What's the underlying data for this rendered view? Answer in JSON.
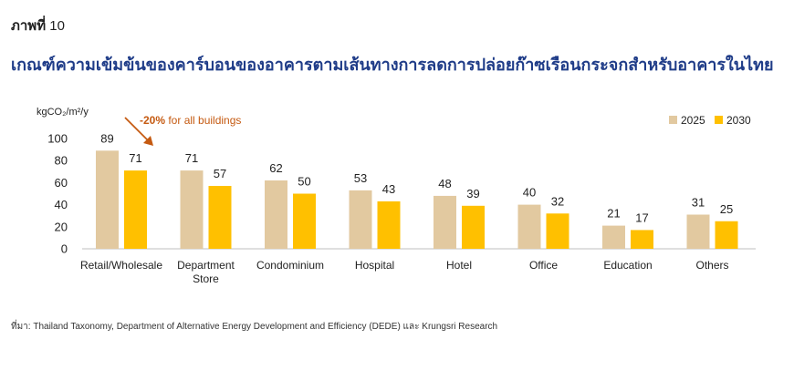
{
  "figure_label": "ภาพที่",
  "figure_number": "10",
  "title": "เกณฑ์ความเข้มข้นของคาร์บอนของอาคารตามเส้นทางการลดการปล่อยก๊าซเรือนกระจกสำหรับอาคารในไทย",
  "source": "ที่มา: Thailand Taxonomy, Department of Alternative Energy Development and Efficiency (DEDE) และ Krungsri Research",
  "chart_data": {
    "type": "bar",
    "ylabel": "kgCO₂/m²/y",
    "ylim": [
      0,
      100
    ],
    "yticks": [
      0,
      20,
      40,
      60,
      80,
      100
    ],
    "grid": false,
    "legend_position": "top-right",
    "categories": [
      [
        "Retail/Wholesale"
      ],
      [
        "Department",
        "Store"
      ],
      [
        "Condominium"
      ],
      [
        "Hospital"
      ],
      [
        "Hotel"
      ],
      [
        "Office"
      ],
      [
        "Education"
      ],
      [
        "Others"
      ]
    ],
    "series": [
      {
        "name": "2025",
        "color": "#e2c9a0",
        "values": [
          89,
          71,
          62,
          53,
          48,
          40,
          21,
          31
        ]
      },
      {
        "name": "2030",
        "color": "#ffc000",
        "values": [
          71,
          57,
          50,
          43,
          39,
          32,
          17,
          25
        ]
      }
    ],
    "annotation": {
      "bold": "-20%",
      "text": " for all buildings",
      "color": "#c55a11"
    }
  }
}
